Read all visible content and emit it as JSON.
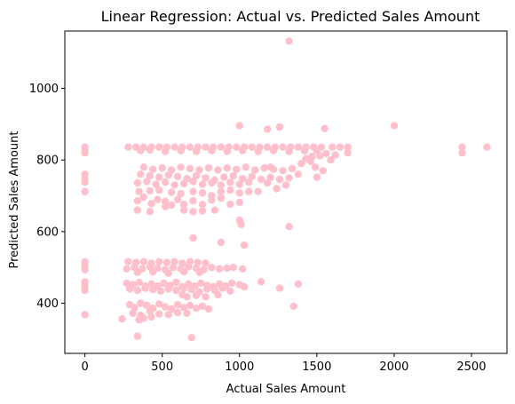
{
  "chart_data": {
    "type": "scatter",
    "title": "Linear Regression: Actual vs. Predicted Sales Amount",
    "xlabel": "Actual Sales Amount",
    "ylabel": "Predicted Sales Amount",
    "xlim": [
      -130,
      2730
    ],
    "ylim": [
      260,
      1160
    ],
    "xticks": [
      0,
      500,
      1000,
      1500,
      2000,
      2500
    ],
    "yticks": [
      400,
      600,
      800,
      1000
    ],
    "grid": false,
    "marker_color": "#ffc0cb",
    "series": [
      {
        "points": [
          [
            0,
            836
          ],
          [
            0,
            828
          ],
          [
            0,
            820
          ],
          [
            0,
            760
          ],
          [
            0,
            748
          ],
          [
            0,
            738
          ],
          [
            0,
            712
          ],
          [
            0,
            516
          ],
          [
            0,
            505
          ],
          [
            0,
            494
          ],
          [
            0,
            460
          ],
          [
            0,
            452
          ],
          [
            0,
            444
          ],
          [
            0,
            436
          ],
          [
            0,
            368
          ],
          [
            280,
            836
          ],
          [
            330,
            836
          ],
          [
            380,
            836
          ],
          [
            430,
            836
          ],
          [
            480,
            836
          ],
          [
            530,
            836
          ],
          [
            580,
            836
          ],
          [
            630,
            836
          ],
          [
            680,
            836
          ],
          [
            730,
            836
          ],
          [
            780,
            836
          ],
          [
            830,
            836
          ],
          [
            880,
            836
          ],
          [
            930,
            836
          ],
          [
            980,
            836
          ],
          [
            1030,
            836
          ],
          [
            1080,
            836
          ],
          [
            1130,
            836
          ],
          [
            1180,
            836
          ],
          [
            1230,
            836
          ],
          [
            1280,
            836
          ],
          [
            1330,
            836
          ],
          [
            1380,
            836
          ],
          [
            1430,
            836
          ],
          [
            1480,
            836
          ],
          [
            1530,
            836
          ],
          [
            1600,
            836
          ],
          [
            1650,
            836
          ],
          [
            1700,
            836
          ],
          [
            360,
            826
          ],
          [
            420,
            828
          ],
          [
            520,
            824
          ],
          [
            620,
            826
          ],
          [
            720,
            824
          ],
          [
            820,
            826
          ],
          [
            920,
            824
          ],
          [
            1020,
            826
          ],
          [
            1120,
            824
          ],
          [
            1220,
            826
          ],
          [
            1320,
            824
          ],
          [
            1420,
            826
          ],
          [
            1500,
            826
          ],
          [
            1560,
            818
          ],
          [
            1620,
            814
          ],
          [
            1700,
            820
          ],
          [
            1430,
            804
          ],
          [
            1470,
            810
          ],
          [
            1520,
            812
          ],
          [
            1460,
            796
          ],
          [
            1490,
            780
          ],
          [
            1540,
            770
          ],
          [
            1400,
            790
          ],
          [
            1500,
            752
          ],
          [
            1590,
            800
          ],
          [
            380,
            780
          ],
          [
            440,
            774
          ],
          [
            500,
            778
          ],
          [
            560,
            772
          ],
          [
            620,
            780
          ],
          [
            680,
            776
          ],
          [
            740,
            772
          ],
          [
            800,
            778
          ],
          [
            860,
            772
          ],
          [
            920,
            778
          ],
          [
            980,
            774
          ],
          [
            1040,
            780
          ],
          [
            1100,
            772
          ],
          [
            1160,
            778
          ],
          [
            1220,
            774
          ],
          [
            1280,
            770
          ],
          [
            1340,
            776
          ],
          [
            1200,
            780
          ],
          [
            360,
            760
          ],
          [
            420,
            756
          ],
          [
            480,
            752
          ],
          [
            540,
            758
          ],
          [
            600,
            754
          ],
          [
            660,
            748
          ],
          [
            720,
            756
          ],
          [
            780,
            750
          ],
          [
            840,
            744
          ],
          [
            900,
            752
          ],
          [
            960,
            756
          ],
          [
            1020,
            748
          ],
          [
            1080,
            754
          ],
          [
            1140,
            746
          ],
          [
            1200,
            752
          ],
          [
            1260,
            746
          ],
          [
            1320,
            750
          ],
          [
            1380,
            760
          ],
          [
            340,
            736
          ],
          [
            400,
            740
          ],
          [
            460,
            732
          ],
          [
            520,
            738
          ],
          [
            580,
            730
          ],
          [
            640,
            734
          ],
          [
            700,
            740
          ],
          [
            760,
            732
          ],
          [
            820,
            736
          ],
          [
            880,
            730
          ],
          [
            940,
            738
          ],
          [
            1000,
            732
          ],
          [
            1060,
            738
          ],
          [
            1120,
            712
          ],
          [
            1180,
            736
          ],
          [
            1240,
            720
          ],
          [
            1300,
            730
          ],
          [
            350,
            712
          ],
          [
            420,
            714
          ],
          [
            480,
            716
          ],
          [
            560,
            710
          ],
          [
            620,
            706
          ],
          [
            700,
            712
          ],
          [
            760,
            708
          ],
          [
            820,
            700
          ],
          [
            880,
            712
          ],
          [
            940,
            716
          ],
          [
            1000,
            708
          ],
          [
            1060,
            712
          ],
          [
            340,
            686
          ],
          [
            380,
            696
          ],
          [
            430,
            678
          ],
          [
            470,
            690
          ],
          [
            520,
            684
          ],
          [
            560,
            674
          ],
          [
            600,
            690
          ],
          [
            640,
            676
          ],
          [
            700,
            686
          ],
          [
            760,
            676
          ],
          [
            820,
            688
          ],
          [
            880,
            694
          ],
          [
            940,
            676
          ],
          [
            1000,
            682
          ],
          [
            340,
            660
          ],
          [
            420,
            656
          ],
          [
            520,
            670
          ],
          [
            640,
            660
          ],
          [
            700,
            656
          ],
          [
            760,
            658
          ],
          [
            840,
            660
          ],
          [
            1000,
            632
          ],
          [
            1010,
            620
          ],
          [
            1320,
            614
          ],
          [
            1030,
            562
          ],
          [
            880,
            570
          ],
          [
            700,
            582
          ],
          [
            1000,
            896
          ],
          [
            1180,
            886
          ],
          [
            1260,
            892
          ],
          [
            1550,
            888
          ],
          [
            2000,
            896
          ],
          [
            2440,
            836
          ],
          [
            2440,
            820
          ],
          [
            2600,
            836
          ],
          [
            1320,
            1132
          ],
          [
            280,
            516
          ],
          [
            330,
            514
          ],
          [
            380,
            516
          ],
          [
            430,
            512
          ],
          [
            480,
            516
          ],
          [
            530,
            514
          ],
          [
            580,
            516
          ],
          [
            630,
            512
          ],
          [
            680,
            516
          ],
          [
            730,
            514
          ],
          [
            780,
            512
          ],
          [
            270,
            496
          ],
          [
            320,
            500
          ],
          [
            370,
            496
          ],
          [
            420,
            502
          ],
          [
            470,
            498
          ],
          [
            520,
            494
          ],
          [
            570,
            500
          ],
          [
            620,
            496
          ],
          [
            670,
            502
          ],
          [
            720,
            498
          ],
          [
            770,
            494
          ],
          [
            820,
            500
          ],
          [
            870,
            496
          ],
          [
            920,
            498
          ],
          [
            960,
            500
          ],
          [
            1020,
            496
          ],
          [
            340,
            486
          ],
          [
            440,
            488
          ],
          [
            540,
            484
          ],
          [
            640,
            488
          ],
          [
            740,
            486
          ],
          [
            270,
            456
          ],
          [
            310,
            452
          ],
          [
            350,
            458
          ],
          [
            390,
            448
          ],
          [
            430,
            454
          ],
          [
            470,
            448
          ],
          [
            510,
            456
          ],
          [
            550,
            450
          ],
          [
            590,
            458
          ],
          [
            630,
            446
          ],
          [
            670,
            454
          ],
          [
            710,
            448
          ],
          [
            750,
            456
          ],
          [
            790,
            450
          ],
          [
            830,
            446
          ],
          [
            870,
            454
          ],
          [
            910,
            448
          ],
          [
            950,
            456
          ],
          [
            1000,
            452
          ],
          [
            1030,
            446
          ],
          [
            290,
            440
          ],
          [
            340,
            436
          ],
          [
            390,
            442
          ],
          [
            440,
            438
          ],
          [
            490,
            434
          ],
          [
            540,
            440
          ],
          [
            590,
            436
          ],
          [
            640,
            442
          ],
          [
            690,
            438
          ],
          [
            740,
            432
          ],
          [
            790,
            440
          ],
          [
            840,
            436
          ],
          [
            890,
            442
          ],
          [
            940,
            434
          ],
          [
            1140,
            460
          ],
          [
            1260,
            442
          ],
          [
            1380,
            454
          ],
          [
            630,
            424
          ],
          [
            660,
            418
          ],
          [
            720,
            422
          ],
          [
            780,
            418
          ],
          [
            860,
            424
          ],
          [
            240,
            356
          ],
          [
            290,
            396
          ],
          [
            320,
            388
          ],
          [
            360,
            400
          ],
          [
            400,
            394
          ],
          [
            440,
            386
          ],
          [
            480,
            398
          ],
          [
            520,
            390
          ],
          [
            560,
            384
          ],
          [
            600,
            396
          ],
          [
            640,
            388
          ],
          [
            680,
            394
          ],
          [
            720,
            386
          ],
          [
            760,
            392
          ],
          [
            800,
            384
          ],
          [
            310,
            372
          ],
          [
            360,
            366
          ],
          [
            420,
            378
          ],
          [
            480,
            370
          ],
          [
            540,
            368
          ],
          [
            600,
            374
          ],
          [
            660,
            372
          ],
          [
            350,
            354
          ],
          [
            380,
            358
          ],
          [
            430,
            362
          ],
          [
            340,
            308
          ],
          [
            690,
            304
          ],
          [
            1350,
            392
          ]
        ]
      }
    ]
  }
}
